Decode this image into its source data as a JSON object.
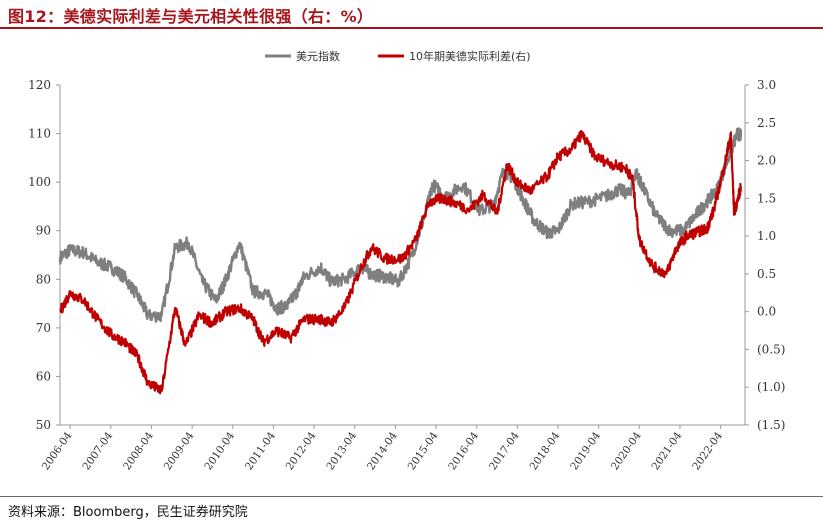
{
  "figure": {
    "title": "图12：美德实际利差与美元相关性很强（右：%）",
    "source": "资料来源：Bloomberg，民生证券研究院"
  },
  "colors": {
    "title": "#a8161c",
    "dxy": "#7f7f7f",
    "spread": "#c00000",
    "right_axis_negative": "#c00000"
  },
  "chart_data": {
    "type": "line",
    "title": "图12：美德实际利差与美元相关性很强（右：%）",
    "legend_position": "top-center",
    "grid": false,
    "x_ticks": [
      "2006-04",
      "2007-04",
      "2008-04",
      "2009-04",
      "2010-04",
      "2011-04",
      "2012-04",
      "2013-04",
      "2014-04",
      "2015-04",
      "2016-04",
      "2017-04",
      "2018-04",
      "2019-04",
      "2020-04",
      "2021-04",
      "2022-04"
    ],
    "y_left": {
      "ticks": [
        "120",
        "110",
        "100",
        "90",
        "80",
        "70",
        "60",
        "50"
      ],
      "ylim": [
        50,
        120
      ]
    },
    "y_right": {
      "ticks": [
        "3.0",
        "2.5",
        "2.0",
        "1.5",
        "1.0",
        "0.5",
        "0.0",
        "(0.5)",
        "(1.0)",
        "(1.5)"
      ],
      "ylim": [
        -1.5,
        3.0
      ]
    },
    "series": [
      {
        "name": "美元指数",
        "axis": "left",
        "color": "#7f7f7f",
        "points": [
          [
            "2006-01",
            84.5
          ],
          [
            "2006-04",
            86
          ],
          [
            "2006-08",
            85.5
          ],
          [
            "2006-12",
            83.5
          ],
          [
            "2007-04",
            82.5
          ],
          [
            "2007-08",
            80.5
          ],
          [
            "2007-12",
            76.5
          ],
          [
            "2008-03",
            72.5
          ],
          [
            "2008-07",
            72.5
          ],
          [
            "2008-11",
            86.5
          ],
          [
            "2009-03",
            87.5
          ],
          [
            "2009-07",
            79.5
          ],
          [
            "2009-11",
            75.5
          ],
          [
            "2010-02",
            80
          ],
          [
            "2010-06",
            87.5
          ],
          [
            "2010-10",
            77.5
          ],
          [
            "2011-02",
            77
          ],
          [
            "2011-05",
            74
          ],
          [
            "2011-08",
            74.5
          ],
          [
            "2011-11",
            77.5
          ],
          [
            "2012-01",
            80.5
          ],
          [
            "2012-06",
            82.5
          ],
          [
            "2012-09",
            79.5
          ],
          [
            "2013-01",
            80
          ],
          [
            "2013-06",
            82.5
          ],
          [
            "2013-09",
            81
          ],
          [
            "2014-01",
            80.5
          ],
          [
            "2014-05",
            79.5
          ],
          [
            "2014-09",
            85
          ],
          [
            "2015-01",
            94
          ],
          [
            "2015-03",
            99.5
          ],
          [
            "2015-07",
            97
          ],
          [
            "2015-12",
            99.5
          ],
          [
            "2016-05",
            94
          ],
          [
            "2016-09",
            95.5
          ],
          [
            "2016-12",
            102.5
          ],
          [
            "2017-03",
            100.5
          ],
          [
            "2017-06",
            96
          ],
          [
            "2017-09",
            92
          ],
          [
            "2018-01",
            89.5
          ],
          [
            "2018-04",
            90
          ],
          [
            "2018-08",
            95.5
          ],
          [
            "2019-01",
            96
          ],
          [
            "2019-06",
            97
          ],
          [
            "2019-10",
            98.5
          ],
          [
            "2020-01",
            97.5
          ],
          [
            "2020-03",
            102
          ],
          [
            "2020-05",
            99
          ],
          [
            "2020-09",
            93
          ],
          [
            "2021-01",
            90
          ],
          [
            "2021-05",
            90
          ],
          [
            "2021-09",
            93.5
          ],
          [
            "2021-12",
            96
          ],
          [
            "2022-03",
            98.5
          ],
          [
            "2022-06",
            104.5
          ],
          [
            "2022-09",
            110
          ],
          [
            "2022-10",
            109.5
          ]
        ]
      },
      {
        "name": "10年期美德实际利差(右)",
        "axis": "right",
        "color": "#c00000",
        "points": [
          [
            "2006-01",
            0.0
          ],
          [
            "2006-04",
            0.25
          ],
          [
            "2006-08",
            0.15
          ],
          [
            "2006-12",
            -0.1
          ],
          [
            "2007-04",
            -0.3
          ],
          [
            "2007-08",
            -0.4
          ],
          [
            "2007-12",
            -0.6
          ],
          [
            "2008-03",
            -0.95
          ],
          [
            "2008-07",
            -1.05
          ],
          [
            "2008-11",
            0.05
          ],
          [
            "2009-02",
            -0.45
          ],
          [
            "2009-06",
            -0.05
          ],
          [
            "2009-10",
            -0.15
          ],
          [
            "2010-02",
            0.0
          ],
          [
            "2010-06",
            0.05
          ],
          [
            "2010-10",
            -0.1
          ],
          [
            "2011-01",
            -0.4
          ],
          [
            "2011-05",
            -0.25
          ],
          [
            "2011-09",
            -0.35
          ],
          [
            "2012-01",
            -0.1
          ],
          [
            "2012-06",
            -0.1
          ],
          [
            "2012-09",
            -0.15
          ],
          [
            "2013-01",
            0.05
          ],
          [
            "2013-06",
            0.6
          ],
          [
            "2013-09",
            0.85
          ],
          [
            "2014-01",
            0.7
          ],
          [
            "2014-06",
            0.7
          ],
          [
            "2014-10",
            0.95
          ],
          [
            "2015-02",
            1.45
          ],
          [
            "2015-06",
            1.5
          ],
          [
            "2015-09",
            1.45
          ],
          [
            "2016-02",
            1.35
          ],
          [
            "2016-06",
            1.55
          ],
          [
            "2016-10",
            1.3
          ],
          [
            "2017-01",
            1.95
          ],
          [
            "2017-04",
            1.7
          ],
          [
            "2017-08",
            1.6
          ],
          [
            "2018-01",
            1.8
          ],
          [
            "2018-04",
            2.05
          ],
          [
            "2018-08",
            2.15
          ],
          [
            "2018-11",
            2.35
          ],
          [
            "2019-03",
            2.05
          ],
          [
            "2019-08",
            1.95
          ],
          [
            "2019-12",
            1.9
          ],
          [
            "2020-02",
            1.75
          ],
          [
            "2020-04",
            0.95
          ],
          [
            "2020-08",
            0.6
          ],
          [
            "2020-12",
            0.5
          ],
          [
            "2021-03",
            0.85
          ],
          [
            "2021-06",
            1.0
          ],
          [
            "2021-09",
            1.05
          ],
          [
            "2021-12",
            1.1
          ],
          [
            "2022-02",
            1.35
          ],
          [
            "2022-05",
            1.9
          ],
          [
            "2022-07",
            2.35
          ],
          [
            "2022-08",
            1.3
          ],
          [
            "2022-10",
            1.65
          ]
        ]
      }
    ]
  }
}
